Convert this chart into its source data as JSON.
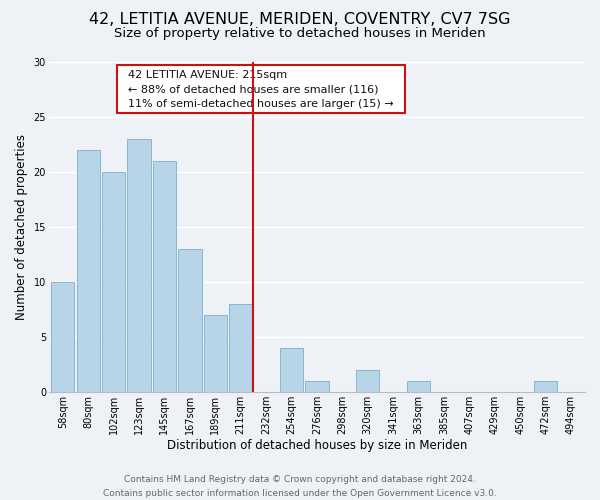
{
  "title": "42, LETITIA AVENUE, MERIDEN, COVENTRY, CV7 7SG",
  "subtitle": "Size of property relative to detached houses in Meriden",
  "xlabel": "Distribution of detached houses by size in Meriden",
  "ylabel": "Number of detached properties",
  "bar_color": "#b8d4e8",
  "bar_edge_color": "#7aafc8",
  "categories": [
    "58sqm",
    "80sqm",
    "102sqm",
    "123sqm",
    "145sqm",
    "167sqm",
    "189sqm",
    "211sqm",
    "232sqm",
    "254sqm",
    "276sqm",
    "298sqm",
    "320sqm",
    "341sqm",
    "363sqm",
    "385sqm",
    "407sqm",
    "429sqm",
    "450sqm",
    "472sqm",
    "494sqm"
  ],
  "values": [
    10,
    22,
    20,
    23,
    21,
    13,
    7,
    8,
    0,
    4,
    1,
    0,
    2,
    0,
    1,
    0,
    0,
    0,
    0,
    1,
    0
  ],
  "ylim": [
    0,
    30
  ],
  "yticks": [
    0,
    5,
    10,
    15,
    20,
    25,
    30
  ],
  "vline_index": 7,
  "vline_color": "#cc1111",
  "annotation_title": "42 LETITIA AVENUE: 215sqm",
  "annotation_line1": "← 88% of detached houses are smaller (116)",
  "annotation_line2": "11% of semi-detached houses are larger (15) →",
  "annotation_box_facecolor": "#ffffff",
  "annotation_border_color": "#cc1111",
  "footer_line1": "Contains HM Land Registry data © Crown copyright and database right 2024.",
  "footer_line2": "Contains public sector information licensed under the Open Government Licence v3.0.",
  "background_color": "#eef2f7",
  "grid_color": "#ffffff",
  "title_fontsize": 11.5,
  "subtitle_fontsize": 9.5,
  "axis_label_fontsize": 8.5,
  "tick_fontsize": 7,
  "annotation_fontsize": 8,
  "footer_fontsize": 6.5
}
